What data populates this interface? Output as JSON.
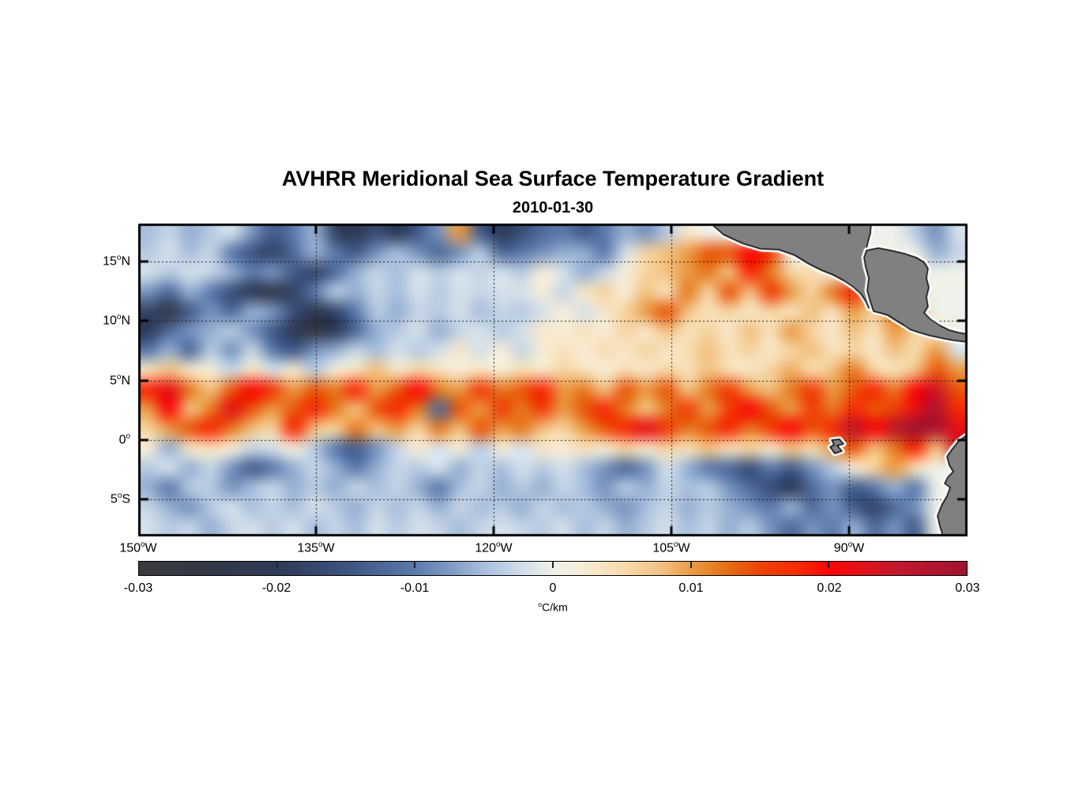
{
  "title": "AVHRR Meridional Sea Surface Temperature Gradient",
  "subtitle": "2010-01-30",
  "chart_data": {
    "type": "heatmap",
    "description": "Map of meridional SST gradient over the eastern tropical Pacific",
    "geo": {
      "lon_min": -150,
      "lon_max": -80,
      "lat_min": -8.1,
      "lat_max": 18.2
    },
    "xticks": [
      {
        "pre": "150",
        "sup": "o",
        "post": "W",
        "lon": -150
      },
      {
        "pre": "135",
        "sup": "o",
        "post": "W",
        "lon": -135
      },
      {
        "pre": "120",
        "sup": "o",
        "post": "W",
        "lon": -120
      },
      {
        "pre": "105",
        "sup": "o",
        "post": "W",
        "lon": -105
      },
      {
        "pre": "90",
        "sup": "o",
        "post": "W",
        "lon": -90
      }
    ],
    "yticks": [
      {
        "pre": "15",
        "sup": "o",
        "post": "N",
        "lat": 15
      },
      {
        "pre": "10",
        "sup": "o",
        "post": "N",
        "lat": 10
      },
      {
        "pre": "5",
        "sup": "o",
        "post": "N",
        "lat": 5
      },
      {
        "pre": "0",
        "sup": "o",
        "post": "",
        "lat": 0
      },
      {
        "pre": "5",
        "sup": "o",
        "post": "S",
        "lat": -5
      }
    ],
    "gridlines": {
      "lons": [
        -135,
        -120,
        -105,
        -90
      ],
      "lats": [
        15,
        10,
        5,
        0,
        -5
      ],
      "style": "dotted"
    },
    "colorbar": {
      "min": -0.03,
      "max": 0.03,
      "unit": {
        "pre": "",
        "sup": "o",
        "post": "C/km"
      },
      "labels": [
        {
          "v": -0.03,
          "label": "-0.03"
        },
        {
          "v": -0.02,
          "label": "-0.02"
        },
        {
          "v": -0.01,
          "label": "-0.01"
        },
        {
          "v": 0,
          "label": "0"
        },
        {
          "v": 0.01,
          "label": "0.01"
        },
        {
          "v": 0.02,
          "label": "0.02"
        },
        {
          "v": 0.03,
          "label": "0.03"
        }
      ],
      "inner_tick_values": [
        -0.02,
        -0.01,
        0,
        0.01,
        0.02
      ],
      "stops": [
        [
          -30,
          "#3a3a3c"
        ],
        [
          -25,
          "#333847"
        ],
        [
          -20,
          "#2d3a57"
        ],
        [
          -15,
          "#3d5380"
        ],
        [
          -10,
          "#5b79ab"
        ],
        [
          -7,
          "#85a0c8"
        ],
        [
          -5,
          "#a8bedd"
        ],
        [
          -2,
          "#d5e1ea"
        ],
        [
          0,
          "#eef1e9"
        ],
        [
          2,
          "#f7edd8"
        ],
        [
          5,
          "#f8dcb0"
        ],
        [
          8,
          "#f2c07f"
        ],
        [
          10,
          "#ea9a45"
        ],
        [
          13,
          "#e4690f"
        ],
        [
          15,
          "#ee4406"
        ],
        [
          18,
          "#f72806"
        ],
        [
          20,
          "#fb0606"
        ],
        [
          23,
          "#d9141f"
        ],
        [
          25,
          "#c2182e"
        ],
        [
          30,
          "#9e1430"
        ]
      ]
    },
    "values_unit": "0.001 degC/km",
    "grid": {
      "cols": 40,
      "rows": 16,
      "values": [
        [
          -5,
          -3,
          -6,
          -4,
          -2,
          -8,
          -14,
          -10,
          -6,
          -18,
          -22,
          -16,
          -20,
          -14,
          -8,
          10,
          -14,
          -20,
          -16,
          -12,
          -10,
          -14,
          -10,
          -6,
          -8,
          -4,
          3,
          0,
          0,
          0,
          0,
          0,
          0,
          0,
          0,
          0,
          0,
          -4,
          -8,
          -2
        ],
        [
          -4,
          -2,
          -5,
          -3,
          -10,
          -15,
          -18,
          -12,
          -6,
          -10,
          -14,
          -8,
          -5,
          -8,
          -12,
          -8,
          -4,
          -12,
          -10,
          -8,
          -6,
          -6,
          -10,
          -2,
          6,
          8,
          10,
          14,
          14,
          20,
          16,
          0,
          0,
          0,
          0,
          0,
          0,
          0,
          -6,
          -3
        ],
        [
          -2,
          -4,
          -2,
          -3,
          -6,
          -10,
          -8,
          -14,
          -18,
          -12,
          -6,
          -3,
          -5,
          -2,
          -4,
          -2,
          -3,
          -2,
          -4,
          2,
          -2,
          -6,
          -3,
          2,
          6,
          8,
          10,
          12,
          8,
          18,
          12,
          6,
          5,
          0,
          0,
          0,
          0,
          0,
          0,
          0
        ],
        [
          -8,
          -12,
          -6,
          -10,
          -16,
          -20,
          -24,
          -18,
          -10,
          -4,
          -6,
          -3,
          -5,
          -2,
          -4,
          -2,
          -3,
          -2,
          -2,
          2,
          -3,
          3,
          6,
          2,
          8,
          4,
          12,
          6,
          14,
          8,
          16,
          10,
          6,
          12,
          18,
          8,
          0,
          0,
          0,
          0
        ],
        [
          -18,
          -24,
          -14,
          -8,
          -12,
          -6,
          -8,
          -16,
          -22,
          -18,
          -10,
          -4,
          -6,
          -3,
          -4,
          -2,
          -5,
          -3,
          -4,
          -2,
          2,
          -2,
          3,
          6,
          10,
          14,
          8,
          4,
          6,
          3,
          6,
          4,
          8,
          4,
          10,
          6,
          12,
          8,
          0,
          0
        ],
        [
          -20,
          -12,
          -8,
          -6,
          -4,
          -8,
          -14,
          -20,
          -26,
          -20,
          -12,
          -6,
          -4,
          -2,
          -6,
          -3,
          -2,
          -4,
          -2,
          3,
          2,
          4,
          2,
          6,
          3,
          8,
          4,
          6,
          3,
          8,
          4,
          10,
          6,
          3,
          8,
          4,
          10,
          6,
          4,
          0
        ],
        [
          -10,
          -6,
          -12,
          -4,
          -8,
          -3,
          -10,
          -14,
          -8,
          -6,
          -3,
          -5,
          -2,
          -4,
          -2,
          3,
          -2,
          2,
          -3,
          2,
          4,
          2,
          5,
          3,
          6,
          3,
          5,
          8,
          4,
          6,
          3,
          6,
          8,
          4,
          6,
          3,
          8,
          5,
          10,
          -2
        ],
        [
          4,
          8,
          3,
          2,
          -3,
          4,
          -2,
          3,
          -4,
          2,
          4,
          8,
          3,
          6,
          4,
          2,
          4,
          2,
          5,
          3,
          6,
          4,
          2,
          5,
          3,
          6,
          4,
          8,
          5,
          3,
          6,
          9,
          5,
          8,
          12,
          6,
          4,
          8,
          14,
          10
        ],
        [
          18,
          22,
          12,
          8,
          14,
          20,
          16,
          10,
          14,
          12,
          18,
          10,
          14,
          20,
          12,
          10,
          16,
          12,
          14,
          18,
          10,
          12,
          8,
          14,
          10,
          14,
          8,
          12,
          16,
          10,
          8,
          12,
          16,
          10,
          14,
          18,
          12,
          20,
          24,
          14
        ],
        [
          10,
          20,
          8,
          12,
          22,
          14,
          10,
          14,
          18,
          12,
          8,
          14,
          18,
          12,
          -12,
          14,
          10,
          16,
          12,
          16,
          10,
          14,
          18,
          12,
          8,
          12,
          16,
          10,
          16,
          20,
          14,
          10,
          16,
          12,
          18,
          14,
          16,
          22,
          28,
          18
        ],
        [
          6,
          10,
          14,
          18,
          12,
          8,
          6,
          18,
          8,
          6,
          12,
          8,
          10,
          6,
          12,
          8,
          14,
          10,
          12,
          8,
          6,
          10,
          14,
          18,
          22,
          16,
          12,
          14,
          18,
          12,
          16,
          20,
          14,
          18,
          26,
          20,
          26,
          30,
          28,
          22
        ],
        [
          2,
          -6,
          3,
          4,
          2,
          -3,
          -2,
          2,
          -4,
          -10,
          -14,
          -8,
          -3,
          2,
          -2,
          2,
          -4,
          2,
          -2,
          3,
          2,
          4,
          2,
          6,
          3,
          6,
          4,
          8,
          4,
          6,
          3,
          8,
          5,
          10,
          14,
          8,
          12,
          18,
          8,
          24
        ],
        [
          -4,
          -2,
          -6,
          -3,
          -8,
          -14,
          -10,
          -6,
          -3,
          -6,
          -10,
          -6,
          -3,
          -4,
          -2,
          -6,
          -3,
          -5,
          -2,
          -4,
          -2,
          -5,
          -8,
          -12,
          -8,
          -2,
          -6,
          -10,
          -12,
          -16,
          -10,
          -14,
          -8,
          -4,
          2,
          6,
          10,
          4,
          0,
          0
        ],
        [
          -6,
          -10,
          -4,
          -4,
          -8,
          -5,
          -3,
          -6,
          -4,
          -6,
          -3,
          -5,
          -3,
          -6,
          -10,
          -5,
          -3,
          -6,
          -4,
          -6,
          -3,
          -5,
          -8,
          -4,
          -6,
          -3,
          -5,
          -4,
          -8,
          -12,
          -16,
          -20,
          -12,
          -8,
          -14,
          -10,
          -6,
          -10,
          0,
          0
        ],
        [
          -3,
          -6,
          -8,
          -4,
          -2,
          -5,
          -3,
          -5,
          -2,
          -4,
          -6,
          -3,
          -5,
          -3,
          -6,
          -3,
          -5,
          -4,
          -6,
          -3,
          -5,
          -4,
          -6,
          -8,
          -5,
          -3,
          -6,
          -4,
          -6,
          -8,
          -10,
          -6,
          -12,
          -8,
          -14,
          -18,
          -12,
          -8,
          0,
          0
        ],
        [
          -2,
          -4,
          -3,
          -6,
          -3,
          -2,
          -4,
          -2,
          -5,
          -3,
          -5,
          -2,
          -4,
          -2,
          -3,
          -5,
          -3,
          -2,
          -3,
          -4,
          -2,
          -5,
          -3,
          -6,
          -4,
          -2,
          -5,
          -3,
          -6,
          -4,
          -8,
          -12,
          -8,
          -10,
          -6,
          -12,
          -8,
          -14,
          0,
          0
        ]
      ]
    },
    "land": {
      "fill": "#808080",
      "outline": "#000000",
      "fringe": "#ffffff",
      "polygons": {
        "mexico": [
          [
            725,
            0
          ],
          [
            741,
            14
          ],
          [
            765,
            25
          ],
          [
            788,
            32
          ],
          [
            811,
            33
          ],
          [
            831,
            40
          ],
          [
            849,
            51
          ],
          [
            865,
            59
          ],
          [
            880,
            65
          ],
          [
            893,
            72
          ],
          [
            905,
            80
          ],
          [
            915,
            89
          ],
          [
            921,
            98
          ],
          [
            925,
            107
          ],
          [
            929,
            102
          ],
          [
            931,
            87
          ],
          [
            927,
            72
          ],
          [
            923,
            57
          ],
          [
            921,
            42
          ],
          [
            923,
            27
          ],
          [
            927,
            12
          ],
          [
            928,
            0
          ]
        ],
        "central_america": [
          [
            922,
            34
          ],
          [
            937,
            31
          ],
          [
            953,
            34
          ],
          [
            970,
            38
          ],
          [
            985,
            43
          ],
          [
            995,
            49
          ],
          [
            1000,
            57
          ],
          [
            998,
            69
          ],
          [
            1001,
            81
          ],
          [
            998,
            93
          ],
          [
            1000,
            105
          ],
          [
            995,
            113
          ],
          [
            1003,
            121
          ],
          [
            1015,
            129
          ],
          [
            1027,
            135
          ],
          [
            1039,
            138
          ],
          [
            1050,
            140
          ],
          [
            1050,
            150
          ],
          [
            1033,
            148
          ],
          [
            1017,
            145
          ],
          [
            1003,
            142
          ],
          [
            989,
            138
          ],
          [
            977,
            134
          ],
          [
            970,
            129
          ],
          [
            960,
            123
          ],
          [
            949,
            116
          ],
          [
            939,
            113
          ],
          [
            931,
            111
          ],
          [
            927,
            99
          ],
          [
            923,
            85
          ],
          [
            925,
            69
          ],
          [
            921,
            55
          ],
          [
            919,
            43
          ]
        ],
        "south_america": [
          [
            1050,
            267
          ],
          [
            1039,
            275
          ],
          [
            1031,
            285
          ],
          [
            1024,
            295
          ],
          [
            1027,
            306
          ],
          [
            1032,
            314
          ],
          [
            1025,
            321
          ],
          [
            1021,
            329
          ],
          [
            1028,
            334
          ],
          [
            1024,
            345
          ],
          [
            1017,
            357
          ],
          [
            1012,
            370
          ],
          [
            1015,
            383
          ],
          [
            1019,
            396
          ],
          [
            1050,
            396
          ]
        ],
        "galapagos": [
          [
            878,
            274
          ],
          [
            888,
            273
          ],
          [
            893,
            279
          ],
          [
            885,
            281
          ],
          [
            891,
            288
          ],
          [
            882,
            291
          ],
          [
            876,
            283
          ],
          [
            881,
            280
          ]
        ]
      }
    }
  }
}
